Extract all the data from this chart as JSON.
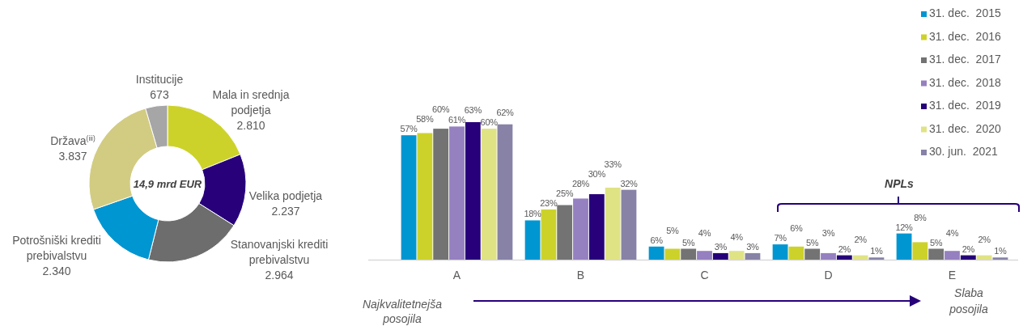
{
  "chart_data": [
    {
      "type": "donut",
      "categories": [
        "Mala in srednja podjetja",
        "Velika podjetja",
        "Stanovanjski krediti prebivalstvu",
        "Potrošniški krediti prebivalstvu",
        "Država$^{(iii)}$",
        "Institucije"
      ],
      "values": [
        2810,
        2237,
        2964,
        2340,
        3837,
        673
      ],
      "value_labels": [
        "2.810",
        "2.237",
        "2.964",
        "2.340",
        "3.837",
        "673"
      ],
      "colors": [
        "#cdd22a",
        "#27007a",
        "#6d6d6d",
        "#0096d2",
        "#d2cc82",
        "#a6a6a6"
      ],
      "annotations": [
        "14,9 mrd EUR"
      ]
    },
    {
      "type": "bar",
      "categories": [
        "A",
        "B",
        "C",
        "D",
        "E"
      ],
      "legend": "top right",
      "annotations": [
        "NPLs",
        "Najkvalitetnejša posojila",
        "Slaba posojila"
      ],
      "series": [
        {
          "name": "31. dec.  2015",
          "color": "#0096d2",
          "values": [
            57,
            18,
            6,
            7,
            12
          ],
          "value_labels": [
            "57%",
            "18%",
            "6%",
            "7%",
            "12%"
          ]
        },
        {
          "name": "31. dec.  2016",
          "color": "#cdd22a",
          "values": [
            58,
            23,
            5,
            6,
            8
          ],
          "value_labels": [
            "58%",
            "23%",
            "5%",
            "6%",
            "8%"
          ]
        },
        {
          "name": "31. dec.  2017",
          "color": "#737373",
          "values": [
            60,
            25,
            5,
            5,
            5
          ],
          "value_labels": [
            "60%",
            "25%",
            "5%",
            "5%",
            "5%"
          ]
        },
        {
          "name": "31. dec.  2018",
          "color": "#9580c0",
          "values": [
            61,
            28,
            4,
            3,
            4
          ],
          "value_labels": [
            "61%",
            "28%",
            "4%",
            "3%",
            "4%"
          ]
        },
        {
          "name": "31. dec.  2019",
          "color": "#27007a",
          "values": [
            63,
            30,
            3,
            2,
            2
          ],
          "value_labels": [
            "63%",
            "30%",
            "3%",
            "2%",
            "2%"
          ]
        },
        {
          "name": "31. dec.  2020",
          "color": "#e0e384",
          "values": [
            60,
            33,
            4,
            2,
            2
          ],
          "value_labels": [
            "60%",
            "33%",
            "4%",
            "2%",
            "2%"
          ]
        },
        {
          "name": "30. jun.  2021",
          "color": "#8782a6",
          "values": [
            62,
            32,
            3,
            1,
            1
          ],
          "value_labels": [
            "62%",
            "32%",
            "3%",
            "1%",
            "1%"
          ]
        }
      ]
    }
  ]
}
